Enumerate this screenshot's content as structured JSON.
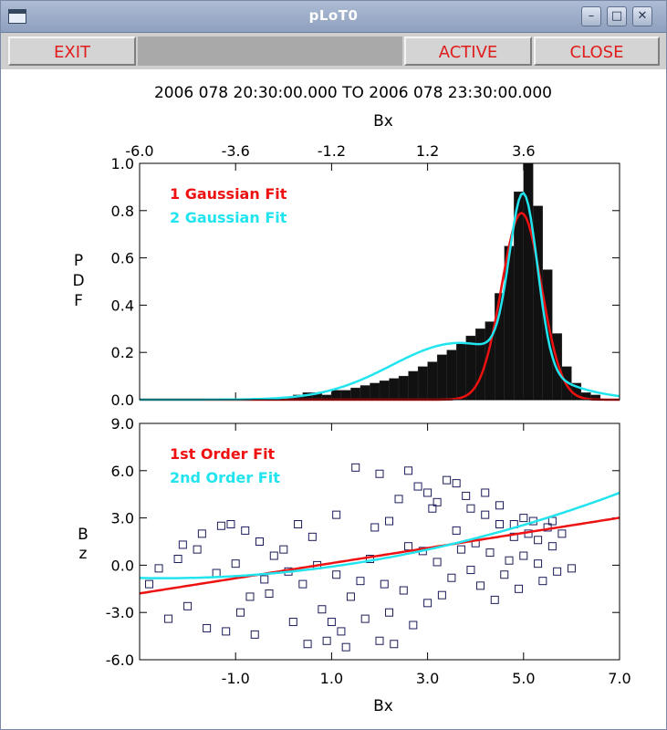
{
  "window": {
    "title": "pLoT0",
    "minimize_icon": "minimize-icon",
    "maximize_icon": "maximize-icon",
    "close_icon": "close-icon"
  },
  "toolbar": {
    "exit_label": "EXIT",
    "active_label": "ACTIVE",
    "close_label": "CLOSE"
  },
  "time_range": "2006 078 20:30:00.000 TO 2006 078 23:30:00.000",
  "colors": {
    "red": "#ee1111",
    "cyan": "#22e4ee",
    "bars": "#111111",
    "markers": "#1c1c5a"
  },
  "chart_data": [
    {
      "type": "bar",
      "title": "",
      "xlabel": "Bx",
      "ylabel": [
        "P",
        "D",
        "F"
      ],
      "xlim": [
        -6.0,
        6.0
      ],
      "ylim": [
        0.0,
        1.0
      ],
      "xticks": [
        "-6.0",
        "-3.6",
        "-1.2",
        "1.2",
        "3.6"
      ],
      "xtick_values": [
        -6.0,
        -3.6,
        -1.2,
        1.2,
        3.6
      ],
      "yticks": [
        "0.0",
        "0.2",
        "0.4",
        "0.6",
        "0.8",
        "1.0"
      ],
      "ytick_values": [
        0.0,
        0.2,
        0.4,
        0.6,
        0.8,
        1.0
      ],
      "bin_width": 0.24,
      "bins": [
        [
          -2.4,
          0.01
        ],
        [
          -2.16,
          0.02
        ],
        [
          -1.92,
          0.03
        ],
        [
          -1.68,
          0.03
        ],
        [
          -1.44,
          0.02
        ],
        [
          -1.2,
          0.04
        ],
        [
          -0.96,
          0.04
        ],
        [
          -0.72,
          0.05
        ],
        [
          -0.48,
          0.06
        ],
        [
          -0.24,
          0.07
        ],
        [
          0.0,
          0.08
        ],
        [
          0.24,
          0.09
        ],
        [
          0.48,
          0.1
        ],
        [
          0.72,
          0.12
        ],
        [
          0.96,
          0.14
        ],
        [
          1.2,
          0.16
        ],
        [
          1.44,
          0.19
        ],
        [
          1.68,
          0.21
        ],
        [
          1.92,
          0.24
        ],
        [
          2.16,
          0.27
        ],
        [
          2.4,
          0.3
        ],
        [
          2.64,
          0.33
        ],
        [
          2.88,
          0.45
        ],
        [
          3.12,
          0.65
        ],
        [
          3.36,
          0.88
        ],
        [
          3.6,
          1.0
        ],
        [
          3.84,
          0.82
        ],
        [
          4.08,
          0.55
        ],
        [
          4.32,
          0.28
        ],
        [
          4.56,
          0.14
        ],
        [
          4.8,
          0.07
        ],
        [
          5.04,
          0.03
        ],
        [
          5.28,
          0.02
        ]
      ],
      "series": [
        {
          "name": "1 Gaussian Fit",
          "color": "#ee1111",
          "kind": "gaussian",
          "components": [
            [
              0.79,
              3.55,
              0.5
            ]
          ]
        },
        {
          "name": "2 Gaussian Fit",
          "color": "#22e4ee",
          "kind": "gaussian",
          "components": [
            [
              0.72,
              3.6,
              0.35
            ],
            [
              0.24,
              2.0,
              1.7
            ]
          ]
        }
      ],
      "legend_position": "top-left"
    },
    {
      "type": "scatter",
      "title": "",
      "xlabel": "Bx",
      "ylabel": [
        "B",
        "z"
      ],
      "xlim": [
        -3.0,
        7.0
      ],
      "ylim": [
        -6.0,
        9.0
      ],
      "xticks": [
        "-1.0",
        "1.0",
        "3.0",
        "5.0",
        "7.0"
      ],
      "xtick_values": [
        -1.0,
        1.0,
        3.0,
        5.0,
        7.0
      ],
      "yticks": [
        "-6.0",
        "-3.0",
        "0.0",
        "3.0",
        "6.0",
        "9.0"
      ],
      "ytick_values": [
        -6.0,
        -3.0,
        0.0,
        3.0,
        6.0,
        9.0
      ],
      "points": [
        [
          -2.6,
          -0.2
        ],
        [
          -2.2,
          0.4
        ],
        [
          -1.8,
          1.0
        ],
        [
          -1.4,
          -0.5
        ],
        [
          -1.1,
          2.6
        ],
        [
          -0.8,
          2.2
        ],
        [
          -0.5,
          1.5
        ],
        [
          -0.2,
          0.6
        ],
        [
          0.1,
          -0.4
        ],
        [
          0.4,
          -1.2
        ],
        [
          0.6,
          1.8
        ],
        [
          0.8,
          -2.8
        ],
        [
          1.0,
          -3.6
        ],
        [
          1.2,
          -4.2
        ],
        [
          1.4,
          -2.0
        ],
        [
          1.5,
          6.2
        ],
        [
          1.6,
          -1.0
        ],
        [
          1.8,
          0.4
        ],
        [
          1.9,
          2.4
        ],
        [
          2.0,
          -4.8
        ],
        [
          2.2,
          -3.0
        ],
        [
          2.4,
          4.2
        ],
        [
          2.5,
          -1.6
        ],
        [
          2.6,
          1.2
        ],
        [
          2.8,
          5.0
        ],
        [
          3.0,
          -2.4
        ],
        [
          3.1,
          3.6
        ],
        [
          3.2,
          0.2
        ],
        [
          3.4,
          5.4
        ],
        [
          3.5,
          -0.8
        ],
        [
          3.6,
          2.2
        ],
        [
          3.8,
          4.4
        ],
        [
          3.9,
          -0.3
        ],
        [
          4.0,
          1.4
        ],
        [
          4.2,
          3.2
        ],
        [
          4.3,
          0.8
        ],
        [
          4.5,
          2.6
        ],
        [
          4.6,
          -0.6
        ],
        [
          4.8,
          1.8
        ],
        [
          5.0,
          0.6
        ],
        [
          5.2,
          2.8
        ],
        [
          5.4,
          -1.0
        ],
        [
          5.6,
          1.2
        ],
        [
          5.8,
          2.0
        ],
        [
          6.0,
          -0.2
        ],
        [
          -2.8,
          -1.2
        ],
        [
          -2.4,
          -3.4
        ],
        [
          -2.0,
          -2.6
        ],
        [
          -1.6,
          -4.0
        ],
        [
          -1.2,
          -4.2
        ],
        [
          -0.9,
          -3.0
        ],
        [
          -0.6,
          -4.4
        ],
        [
          -0.3,
          -1.8
        ],
        [
          0.2,
          -3.6
        ],
        [
          0.5,
          -5.0
        ],
        [
          0.9,
          -4.8
        ],
        [
          1.3,
          -5.2
        ],
        [
          1.7,
          -3.4
        ],
        [
          2.1,
          -1.2
        ],
        [
          2.3,
          -5.0
        ],
        [
          2.7,
          -3.8
        ],
        [
          2.9,
          0.9
        ],
        [
          3.3,
          -1.9
        ],
        [
          3.7,
          1.0
        ],
        [
          4.1,
          -1.3
        ],
        [
          4.4,
          -2.2
        ],
        [
          4.7,
          0.3
        ],
        [
          4.9,
          -1.5
        ],
        [
          5.1,
          2.0
        ],
        [
          5.3,
          0.1
        ],
        [
          5.5,
          2.4
        ],
        [
          5.7,
          -0.4
        ],
        [
          -1.0,
          0.1
        ],
        [
          -0.4,
          -0.9
        ],
        [
          0.0,
          1.0
        ],
        [
          0.3,
          2.6
        ],
        [
          0.7,
          0.0
        ],
        [
          1.1,
          -0.6
        ],
        [
          1.1,
          3.2
        ],
        [
          2.0,
          5.8
        ],
        [
          2.2,
          2.8
        ],
        [
          2.6,
          6.0
        ],
        [
          3.0,
          4.6
        ],
        [
          3.2,
          4.0
        ],
        [
          3.6,
          5.2
        ],
        [
          3.9,
          3.6
        ],
        [
          4.2,
          4.6
        ],
        [
          4.5,
          3.8
        ],
        [
          4.8,
          2.6
        ],
        [
          5.0,
          3.0
        ],
        [
          5.3,
          1.6
        ],
        [
          5.6,
          2.8
        ],
        [
          -2.1,
          1.3
        ],
        [
          -1.7,
          2.0
        ],
        [
          -1.3,
          2.5
        ],
        [
          -0.7,
          -2.0
        ]
      ],
      "series": [
        {
          "name": "1st Order Fit",
          "color": "#ee1111",
          "kind": "poly",
          "coeffs": [
            -0.35,
            0.48
          ]
        },
        {
          "name": "2nd Order Fit",
          "color": "#22e4ee",
          "kind": "poly",
          "coeffs": [
            -0.45,
            0.3,
            0.06
          ]
        }
      ],
      "legend_position": "top-left"
    }
  ]
}
